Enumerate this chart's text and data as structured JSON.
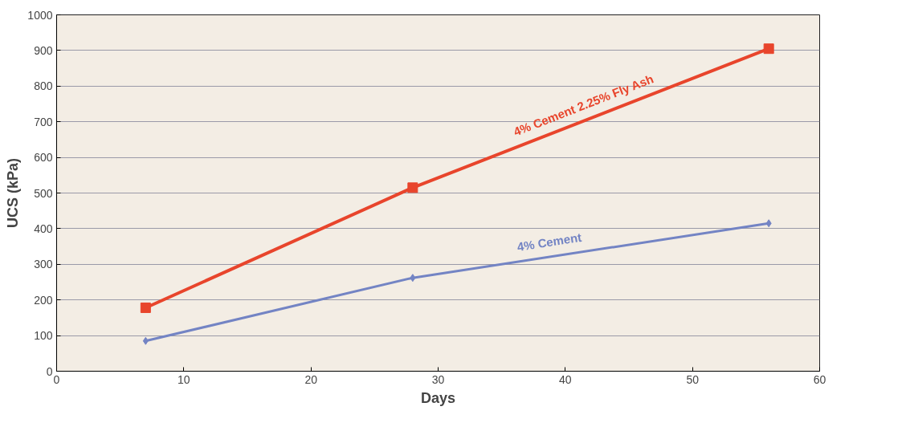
{
  "chart_data": {
    "type": "line",
    "xlabel": "Days",
    "ylabel": "UCS (kPa)",
    "xlim": [
      0,
      60
    ],
    "xticks": [
      0,
      10,
      20,
      30,
      40,
      50,
      60
    ],
    "ylim": [
      0,
      1000
    ],
    "yticks": [
      0,
      100,
      200,
      300,
      400,
      500,
      600,
      700,
      800,
      900,
      1000
    ],
    "grid": "y",
    "legend": false,
    "series": [
      {
        "name": "4% Cement  2.25% Fly Ash",
        "color": "#e8452c",
        "marker": "square",
        "x": [
          7,
          28,
          56
        ],
        "values": [
          178,
          515,
          905
        ]
      },
      {
        "name": "4% Cement",
        "color": "#7384c4",
        "marker": "diamond",
        "x": [
          7,
          28,
          56
        ],
        "values": [
          85,
          262,
          415
        ]
      }
    ]
  }
}
